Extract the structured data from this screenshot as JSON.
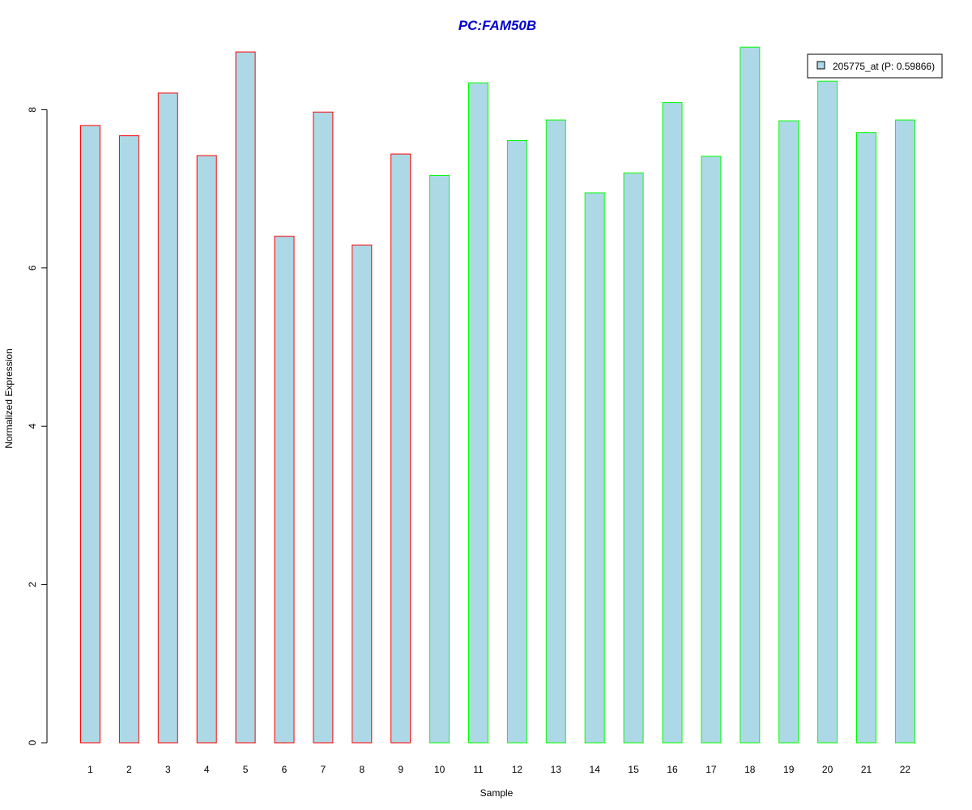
{
  "chart_data": {
    "type": "bar",
    "title": "PC:FAM50B",
    "xlabel": "Sample",
    "ylabel": "Normalized Expression",
    "categories": [
      "1",
      "2",
      "3",
      "4",
      "5",
      "6",
      "7",
      "8",
      "9",
      "10",
      "11",
      "12",
      "13",
      "14",
      "15",
      "16",
      "17",
      "18",
      "19",
      "20",
      "21",
      "22"
    ],
    "series": [
      {
        "name": "205775_at (P: 0.59866)",
        "values": [
          7.8,
          7.67,
          8.21,
          7.42,
          8.73,
          6.4,
          7.97,
          6.29,
          7.44,
          7.17,
          8.34,
          7.61,
          7.87,
          6.95,
          7.2,
          8.09,
          7.41,
          8.79,
          7.86,
          8.36,
          7.71,
          7.87
        ]
      }
    ],
    "group_sizes": [
      9,
      13
    ],
    "ylim": [
      0,
      8.8
    ],
    "yticks": [
      0,
      2,
      4,
      6,
      8
    ],
    "grid": false,
    "legend_position": "top-right"
  },
  "colors": {
    "bar_fill": "#add8e6",
    "group_1_border": "#ff0000",
    "group_2_border": "#00ff00",
    "title": "#0000cd"
  }
}
